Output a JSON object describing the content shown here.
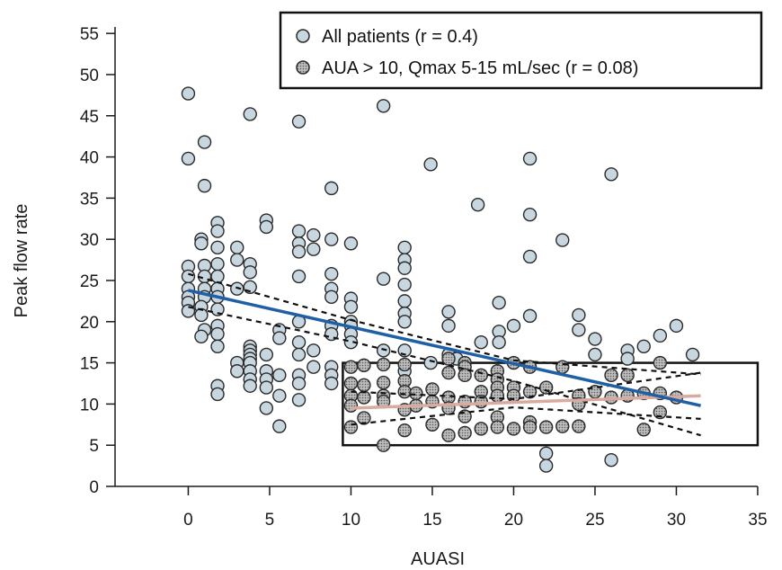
{
  "colors": {
    "point_fill": "#c7d6df",
    "subset_fill": "#b6b6b6",
    "point_stroke": "#2a2a2a",
    "all_fit": "#1f5fa6",
    "subset_fit": "#d9aaa0",
    "ci_line": "#111111",
    "box": "#111111"
  },
  "chart_data": {
    "type": "scatter",
    "xlabel": "AUASI",
    "ylabel": "Peak flow rate",
    "xlim": [
      -4.5,
      35.5
    ],
    "ylim": [
      0,
      56
    ],
    "x_ticks": [
      0,
      5,
      10,
      15,
      20,
      25,
      30,
      35
    ],
    "y_ticks": [
      0,
      5,
      10,
      15,
      20,
      25,
      30,
      35,
      40,
      45,
      50,
      55
    ],
    "x_tick_labels": [
      "0",
      "5",
      "10",
      "15",
      "20",
      "25",
      "30",
      "35"
    ],
    "y_tick_labels": [
      "0",
      "5",
      "10",
      "15",
      "20",
      "25",
      "30",
      "35",
      "40",
      "45",
      "50",
      "55"
    ],
    "legend": {
      "position": "top-right",
      "entries": [
        {
          "label": "All patients (r = 0.4)",
          "marker": "open-circle"
        },
        {
          "label": "AUA > 10, Qmax 5-15 mL/sec (r = 0.08)",
          "marker": "hatched-circle"
        }
      ]
    },
    "highlight_box": {
      "x_range": [
        9.5,
        35
      ],
      "y_range": [
        5,
        15
      ]
    },
    "series": [
      {
        "name": "All patients (r = 0.4)",
        "points": [
          [
            0,
            47.7
          ],
          [
            0,
            39.8
          ],
          [
            0,
            26.7
          ],
          [
            0,
            25.5
          ],
          [
            0,
            24
          ],
          [
            0,
            23
          ],
          [
            0,
            22.3
          ],
          [
            0,
            21.3
          ],
          [
            1,
            41.8
          ],
          [
            1,
            36.5
          ],
          [
            0.8,
            30
          ],
          [
            0.8,
            29.5
          ],
          [
            1,
            26.8
          ],
          [
            1,
            25.5
          ],
          [
            1,
            24
          ],
          [
            1,
            23
          ],
          [
            0.8,
            21.8
          ],
          [
            0.8,
            20.8
          ],
          [
            1,
            19
          ],
          [
            0.8,
            18.2
          ],
          [
            1.8,
            32
          ],
          [
            1.8,
            31
          ],
          [
            1.8,
            29
          ],
          [
            1.8,
            27
          ],
          [
            1.8,
            25.5
          ],
          [
            1.8,
            24
          ],
          [
            1.8,
            23
          ],
          [
            1.8,
            21.5
          ],
          [
            1.8,
            19.5
          ],
          [
            1.8,
            18.5
          ],
          [
            1.8,
            17
          ],
          [
            1.8,
            12.2
          ],
          [
            1.8,
            11.2
          ],
          [
            3,
            29
          ],
          [
            3,
            27.5
          ],
          [
            3,
            24
          ],
          [
            3,
            15
          ],
          [
            3,
            14
          ],
          [
            3.8,
            45.2
          ],
          [
            3.8,
            27
          ],
          [
            3.8,
            26
          ],
          [
            3.8,
            24.2
          ],
          [
            3.8,
            17
          ],
          [
            3.8,
            16.5
          ],
          [
            3.8,
            16
          ],
          [
            3.8,
            15.5
          ],
          [
            3.8,
            15
          ],
          [
            3.8,
            14
          ],
          [
            3.8,
            13
          ],
          [
            3.8,
            12.2
          ],
          [
            4.8,
            32.3
          ],
          [
            4.8,
            31.5
          ],
          [
            4.8,
            16
          ],
          [
            4.8,
            14
          ],
          [
            4.8,
            13
          ],
          [
            4.8,
            12
          ],
          [
            4.8,
            9.5
          ],
          [
            5.6,
            19
          ],
          [
            5.6,
            18
          ],
          [
            5.6,
            13.5
          ],
          [
            5.6,
            11
          ],
          [
            5.6,
            7.3
          ],
          [
            6.8,
            44.3
          ],
          [
            6.8,
            31
          ],
          [
            6.8,
            29.5
          ],
          [
            6.8,
            28.5
          ],
          [
            6.8,
            25.5
          ],
          [
            6.8,
            20
          ],
          [
            6.8,
            17.5
          ],
          [
            6.8,
            16
          ],
          [
            6.8,
            13.5
          ],
          [
            6.8,
            12.5
          ],
          [
            6.8,
            10.5
          ],
          [
            7.7,
            30.5
          ],
          [
            7.7,
            28.8
          ],
          [
            7.7,
            16.5
          ],
          [
            7.7,
            14.5
          ],
          [
            8.8,
            36.2
          ],
          [
            8.8,
            30
          ],
          [
            8.8,
            25.8
          ],
          [
            8.8,
            24
          ],
          [
            8.8,
            23
          ],
          [
            8.8,
            19.5
          ],
          [
            8.8,
            18.5
          ],
          [
            8.8,
            14.5
          ],
          [
            8.8,
            13.5
          ],
          [
            8.8,
            12.5
          ],
          [
            10,
            29.5
          ],
          [
            10,
            22.8
          ],
          [
            10,
            21.8
          ],
          [
            10,
            20
          ],
          [
            10,
            19.5
          ],
          [
            10,
            18.5
          ],
          [
            10,
            17.5
          ],
          [
            12,
            46.2
          ],
          [
            12,
            25.2
          ],
          [
            12,
            16.5
          ],
          [
            13.3,
            29
          ],
          [
            13.3,
            27.5
          ],
          [
            13.3,
            26.5
          ],
          [
            13.3,
            24.5
          ],
          [
            13.3,
            22.5
          ],
          [
            13.3,
            21
          ],
          [
            13.3,
            20
          ],
          [
            13.3,
            16.5
          ],
          [
            13.3,
            14
          ],
          [
            14.9,
            39.1
          ],
          [
            14.9,
            15
          ],
          [
            16,
            21.2
          ],
          [
            16,
            19.5
          ],
          [
            16,
            16
          ],
          [
            16.5,
            15.5
          ],
          [
            17.8,
            34.2
          ],
          [
            18,
            17.5
          ],
          [
            19.1,
            22.3
          ],
          [
            19.1,
            18.8
          ],
          [
            19.1,
            17.5
          ],
          [
            20,
            19.5
          ],
          [
            21,
            39.8
          ],
          [
            21,
            33
          ],
          [
            21,
            27.9
          ],
          [
            21,
            20.7
          ],
          [
            22,
            4
          ],
          [
            22,
            2.5
          ],
          [
            23,
            29.9
          ],
          [
            24,
            20.8
          ],
          [
            24,
            19
          ],
          [
            25,
            17.9
          ],
          [
            25,
            16
          ],
          [
            26,
            37.9
          ],
          [
            26,
            3.2
          ],
          [
            27,
            16.5
          ],
          [
            27,
            15.5
          ],
          [
            28,
            17
          ],
          [
            29,
            18.3
          ],
          [
            30,
            19.5
          ],
          [
            31,
            16
          ]
        ]
      },
      {
        "name": "AUA > 10, Qmax 5-15 mL/sec (r = 0.08)",
        "points": [
          [
            10,
            14.5
          ],
          [
            10,
            12.5
          ],
          [
            10,
            11
          ],
          [
            10,
            9.8
          ],
          [
            10,
            7.2
          ],
          [
            10.8,
            14.7
          ],
          [
            10.8,
            12.3
          ],
          [
            10.8,
            10.8
          ],
          [
            10.8,
            8.3
          ],
          [
            12,
            14.8
          ],
          [
            12,
            12.6
          ],
          [
            12,
            11
          ],
          [
            12,
            10.3
          ],
          [
            12,
            5
          ],
          [
            13.3,
            14.8
          ],
          [
            13.3,
            12.8
          ],
          [
            13.3,
            11.5
          ],
          [
            13.3,
            9.3
          ],
          [
            13.3,
            6.8
          ],
          [
            14,
            11.3
          ],
          [
            14,
            9.8
          ],
          [
            15,
            11.8
          ],
          [
            15,
            10.3
          ],
          [
            15,
            7.5
          ],
          [
            16,
            15.5
          ],
          [
            16,
            13.8
          ],
          [
            16,
            10.8
          ],
          [
            16,
            9.5
          ],
          [
            16,
            6.2
          ],
          [
            17,
            15
          ],
          [
            17,
            14.5
          ],
          [
            17,
            13.5
          ],
          [
            17,
            10.3
          ],
          [
            17,
            8.5
          ],
          [
            17,
            6.5
          ],
          [
            18,
            13.5
          ],
          [
            18,
            11.5
          ],
          [
            18,
            10.3
          ],
          [
            18,
            7
          ],
          [
            19,
            14
          ],
          [
            19,
            13
          ],
          [
            19,
            12
          ],
          [
            19,
            11
          ],
          [
            19,
            8.4
          ],
          [
            19,
            7.2
          ],
          [
            20,
            15
          ],
          [
            20,
            12
          ],
          [
            20,
            11
          ],
          [
            20,
            7
          ],
          [
            21,
            14.5
          ],
          [
            21,
            11.5
          ],
          [
            21,
            7.8
          ],
          [
            21,
            7.2
          ],
          [
            22,
            12
          ],
          [
            22,
            7.2
          ],
          [
            23,
            14.5
          ],
          [
            23,
            7.3
          ],
          [
            24,
            11
          ],
          [
            24,
            10
          ],
          [
            24,
            7.3
          ],
          [
            25,
            11.5
          ],
          [
            26,
            13.5
          ],
          [
            26,
            10.8
          ],
          [
            27,
            13.5
          ],
          [
            27,
            11
          ],
          [
            28,
            11.3
          ],
          [
            28,
            6.9
          ],
          [
            29,
            15
          ],
          [
            29,
            11.3
          ],
          [
            29,
            9
          ],
          [
            30,
            10.8
          ]
        ]
      }
    ],
    "fits": [
      {
        "name": "All patients fit",
        "x": [
          0,
          31.5
        ],
        "y": [
          23.8,
          9.8
        ]
      },
      {
        "name": "Subset fit",
        "x": [
          10,
          31.5
        ],
        "y": [
          9.5,
          11
        ]
      }
    ],
    "confidence_bands": [
      {
        "x": [
          0,
          10,
          20,
          31.5
        ],
        "y": [
          25.8,
          20.2,
          15.3,
          13.6
        ]
      },
      {
        "x": [
          0,
          10,
          20,
          31.5
        ],
        "y": [
          21.8,
          17.6,
          12.8,
          6.2
        ]
      },
      {
        "x": [
          10,
          20,
          31.5
        ],
        "y": [
          11.5,
          10.6,
          13.8
        ]
      },
      {
        "x": [
          10,
          20,
          31.5
        ],
        "y": [
          7.5,
          9.6,
          8.2
        ]
      }
    ]
  }
}
